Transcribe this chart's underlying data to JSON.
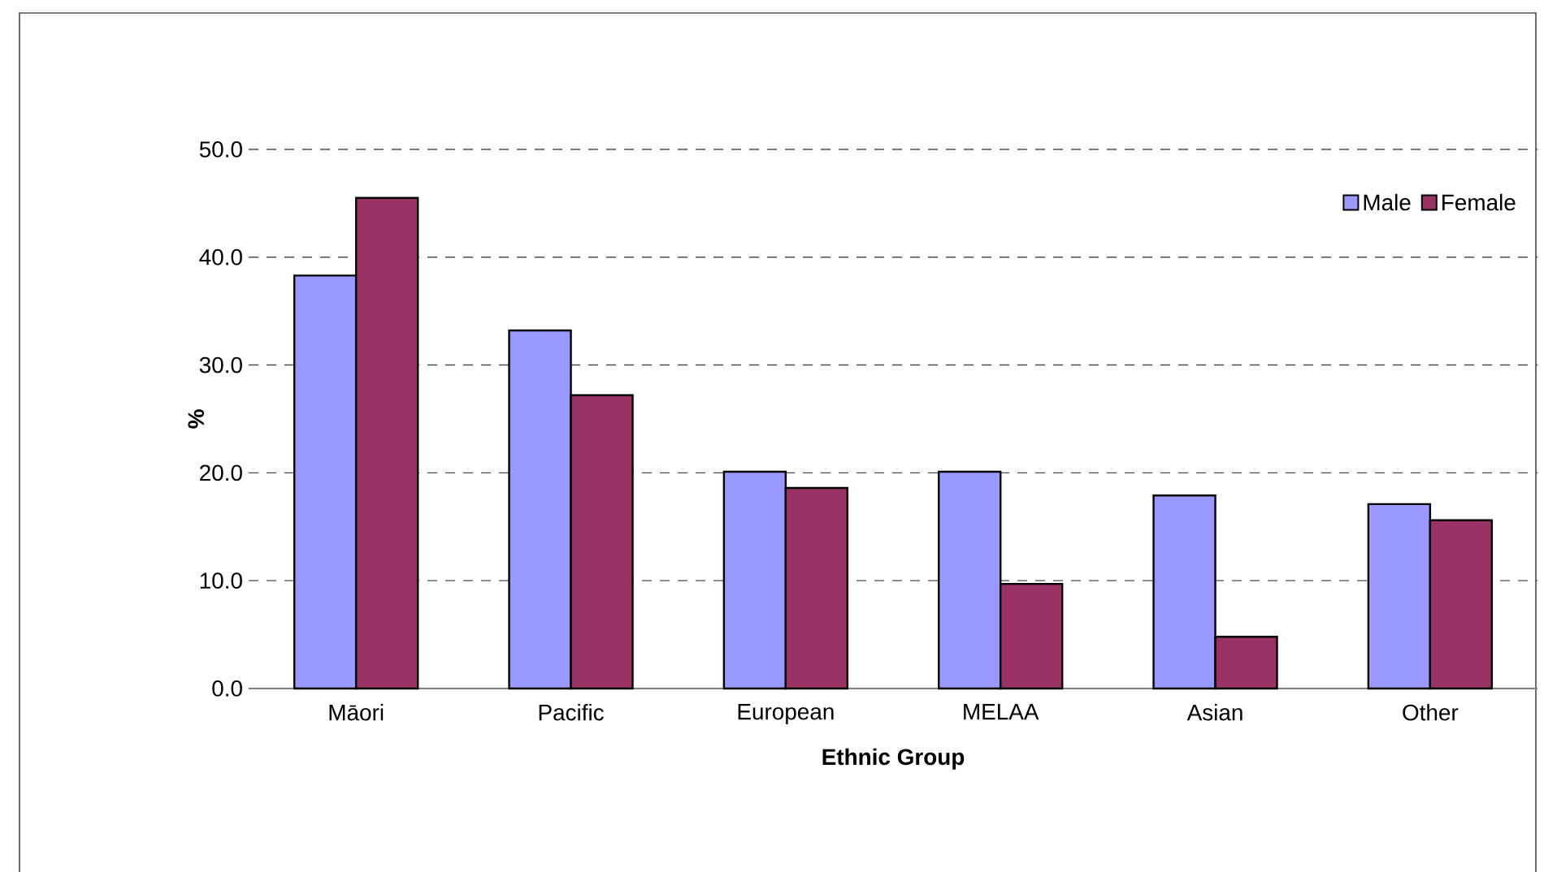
{
  "chart_data": {
    "type": "bar",
    "xlabel": "Ethnic Group",
    "ylabel": "%",
    "categories": [
      "Māori",
      "Pacific",
      "European",
      "MELAA",
      "Asian",
      "Other"
    ],
    "series": [
      {
        "name": "Male",
        "color": "#9999ff",
        "values": [
          38.3,
          33.2,
          20.1,
          20.1,
          17.9,
          17.1
        ]
      },
      {
        "name": "Female",
        "color": "#993366",
        "values": [
          45.5,
          27.2,
          18.6,
          9.7,
          4.8,
          15.6
        ]
      }
    ],
    "ylim": [
      0,
      50
    ],
    "yticks": [
      {
        "value": 0,
        "label": "0.0"
      },
      {
        "value": 10,
        "label": "10.0"
      },
      {
        "value": 20,
        "label": "20.0"
      },
      {
        "value": 30,
        "label": "30.0"
      },
      {
        "value": 40,
        "label": "40.0"
      },
      {
        "value": 50,
        "label": "50.0"
      }
    ],
    "grid": "y",
    "legend": "top right"
  }
}
